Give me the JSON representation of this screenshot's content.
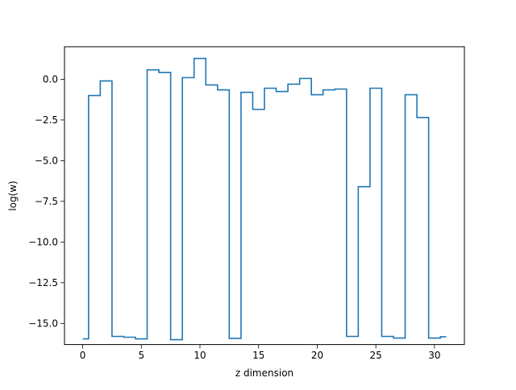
{
  "chart_data": {
    "type": "line",
    "drawstyle": "steps-mid",
    "title": "",
    "xlabel": "z dimension",
    "ylabel": "log(w)",
    "xlim": [
      -1.55,
      32.55
    ],
    "ylim": [
      -16.3,
      2.0
    ],
    "xticks": [
      0,
      5,
      10,
      15,
      20,
      25,
      30
    ],
    "xtick_labels": [
      "0",
      "5",
      "10",
      "15",
      "20",
      "25",
      "30"
    ],
    "yticks": [
      0.0,
      -2.5,
      -5.0,
      -7.5,
      -10.0,
      -12.5,
      -15.0
    ],
    "ytick_labels": [
      "0.0",
      "−2.5",
      "−5.0",
      "−7.5",
      "−10.0",
      "−12.5",
      "−15.0"
    ],
    "grid": false,
    "legend": "none",
    "series": [
      {
        "color": "#1f77b4",
        "x": [
          0,
          1,
          2,
          3,
          4,
          5,
          6,
          7,
          8,
          9,
          10,
          11,
          12,
          13,
          14,
          15,
          16,
          17,
          18,
          19,
          20,
          21,
          22,
          23,
          24,
          25,
          26,
          27,
          28,
          29,
          30,
          31
        ],
        "y": [
          -15.95,
          -1.0,
          -0.1,
          -15.8,
          -15.85,
          -15.95,
          0.58,
          0.42,
          -16.0,
          0.1,
          1.28,
          -0.35,
          -0.65,
          -15.92,
          -0.8,
          -1.85,
          -0.55,
          -0.75,
          -0.3,
          0.05,
          -0.95,
          -0.65,
          -0.6,
          -15.8,
          -6.6,
          -0.55,
          -15.8,
          -15.9,
          -0.95,
          -2.35,
          -15.9,
          -15.82
        ]
      }
    ]
  }
}
